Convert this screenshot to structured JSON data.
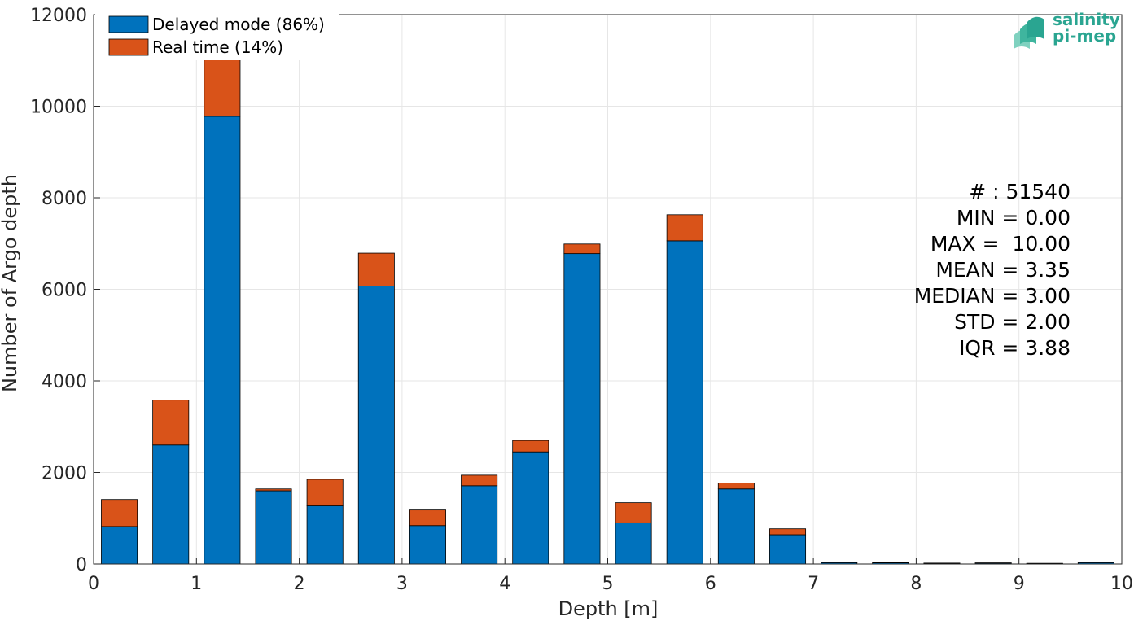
{
  "chart_data": {
    "type": "bar",
    "stacked": true,
    "x": [
      0.25,
      0.75,
      1.25,
      1.75,
      2.25,
      2.75,
      3.25,
      3.75,
      4.25,
      4.75,
      5.25,
      5.75,
      6.25,
      6.75,
      7.25,
      7.75,
      8.25,
      8.75,
      9.25,
      9.75
    ],
    "series": [
      {
        "name": "Delayed mode (86%)",
        "color": "#0072BD",
        "values": [
          820,
          2600,
          9780,
          1600,
          1270,
          6070,
          840,
          1710,
          2450,
          6780,
          900,
          7060,
          1640,
          640,
          30,
          25,
          15,
          20,
          10,
          30
        ]
      },
      {
        "name": "Real time (14%)",
        "color": "#D95319",
        "values": [
          590,
          980,
          1930,
          40,
          580,
          720,
          340,
          230,
          250,
          210,
          440,
          570,
          130,
          130,
          10,
          5,
          5,
          5,
          5,
          10
        ]
      }
    ],
    "xlabel": "Depth [m]",
    "ylabel": "Number of Argo depth",
    "xlim": [
      0,
      10
    ],
    "ylim": [
      0,
      12000
    ],
    "xticks": [
      0,
      1,
      2,
      3,
      4,
      5,
      6,
      7,
      8,
      9,
      10
    ],
    "yticks": [
      0,
      2000,
      4000,
      6000,
      8000,
      10000,
      12000
    ],
    "grid": true,
    "legend_position": "top-left"
  },
  "stats": {
    "count": "# : 51540",
    "min": "MIN = 0.00",
    "max": "MAX =  10.00",
    "mean": "MEAN = 3.35",
    "median": "MEDIAN = 3.00",
    "std": "STD = 2.00",
    "iqr": "IQR = 3.88"
  },
  "logo": {
    "line1": "salinity",
    "line2": "pi-mep",
    "color": "#2aa591"
  }
}
